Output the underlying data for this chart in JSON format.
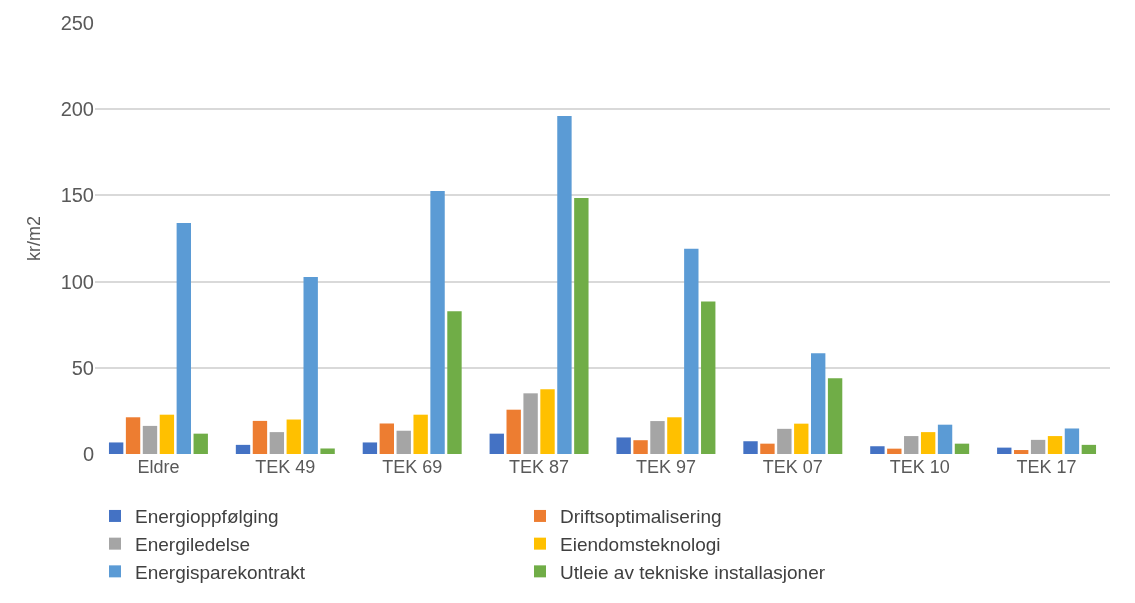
{
  "chart_data": {
    "type": "bar",
    "ylabel": "kr/m2",
    "categories": [
      "Eldre",
      "TEK 49",
      "TEK 69",
      "TEK 87",
      "TEK 97",
      "TEK 07",
      "TEK 10",
      "TEK 17"
    ],
    "series": [
      {
        "name": "Energioppfølging",
        "color": "#4472c4",
        "values": [
          6.7,
          5.3,
          6.7,
          11.8,
          9.6,
          7.4,
          4.5,
          3.7
        ]
      },
      {
        "name": "Driftsoptimalisering",
        "color": "#ed7d31",
        "values": [
          21.3,
          19.2,
          17.7,
          25.7,
          8,
          6,
          3.1,
          2.3
        ]
      },
      {
        "name": "Energiledelse",
        "color": "#a5a5a5",
        "values": [
          16.3,
          12.7,
          13.5,
          35.2,
          19.1,
          14.6,
          10.4,
          8.2
        ]
      },
      {
        "name": "Eiendomsteknologi",
        "color": "#ffc000",
        "values": [
          22.8,
          20,
          22.8,
          37.5,
          21.3,
          17.6,
          12.7,
          10.4
        ]
      },
      {
        "name": "Energisparekontrakt",
        "color": "#5b9bd5",
        "values": [
          134,
          102.6,
          152.5,
          196,
          119,
          58.4,
          17,
          14.8
        ]
      },
      {
        "name": "Utleie av tekniske installasjoner",
        "color": "#70ad47",
        "values": [
          11.8,
          3.2,
          82.8,
          148.5,
          88.4,
          43.9,
          6,
          5.3
        ]
      }
    ],
    "ylim": [
      0,
      250
    ],
    "yticks": [
      0,
      50,
      100,
      150,
      200,
      250
    ],
    "grid": "y",
    "legend": "bottom"
  }
}
